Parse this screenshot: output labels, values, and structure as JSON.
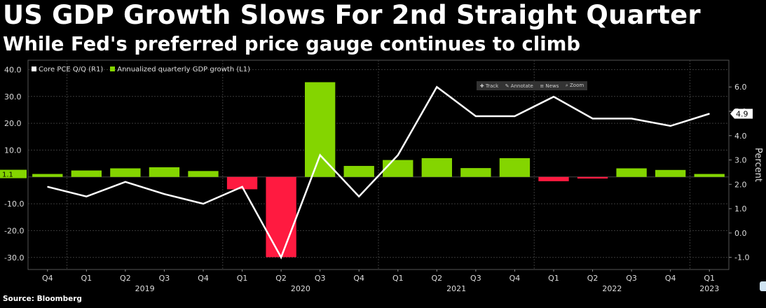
{
  "header": {
    "title": "US GDP Growth Slows For 2nd Straight Quarter",
    "subtitle": "While Fed's preferred price gauge continues to climb"
  },
  "footer": {
    "source": "Source: Bloomberg"
  },
  "toolbar": {
    "track": "Track",
    "annotate": "Annotate",
    "news": "News",
    "zoom": "Zoom"
  },
  "colors": {
    "positive": "#84d500",
    "negative": "#ff1a40",
    "line": "#ffffff",
    "grid": "#3a3a3a"
  },
  "chart_data": {
    "type": "bar",
    "categories": [
      "Q4",
      "Q1",
      "Q2",
      "Q3",
      "Q4",
      "Q1",
      "Q2",
      "Q3",
      "Q4",
      "Q1",
      "Q2",
      "Q3",
      "Q4",
      "Q1",
      "Q2",
      "Q3",
      "Q4",
      "Q1"
    ],
    "years": [
      {
        "label": "2019",
        "start": 1,
        "end": 4
      },
      {
        "label": "2020",
        "start": 5,
        "end": 8
      },
      {
        "label": "2021",
        "start": 9,
        "end": 12
      },
      {
        "label": "2022",
        "start": 13,
        "end": 16
      },
      {
        "label": "2023",
        "start": 17,
        "end": 17
      }
    ],
    "series": [
      {
        "name": "Annualized quarterly GDP growth (L1)",
        "type": "bar",
        "axis": "left",
        "values": [
          1.1,
          2.4,
          3.2,
          3.6,
          2.2,
          -4.6,
          -29.9,
          35.3,
          4.1,
          6.3,
          7.0,
          3.3,
          7.0,
          -1.6,
          -0.6,
          3.2,
          2.6,
          1.1
        ]
      },
      {
        "name": "Core PCE Q/Q (R1)",
        "type": "line",
        "axis": "right",
        "values": [
          1.9,
          1.5,
          2.1,
          1.6,
          1.2,
          1.9,
          -1.0,
          3.2,
          1.5,
          3.2,
          6.0,
          4.8,
          4.8,
          5.6,
          4.7,
          4.7,
          4.4,
          4.9
        ]
      }
    ],
    "left_axis": {
      "ylim": [
        -34.5,
        43.5
      ],
      "ticks": [
        40,
        30,
        20,
        10,
        -10,
        -20,
        -30
      ],
      "tick_labels": [
        "40.0",
        "30.0",
        "20.0",
        "10.0",
        "-10.0",
        "-20.0",
        "-30.0"
      ]
    },
    "right_axis": {
      "label": "Percent",
      "ylim": [
        -1.5,
        7.1
      ],
      "ticks": [
        6,
        5,
        4,
        3,
        2,
        1,
        0,
        -1
      ],
      "tick_labels": [
        "6.0",
        "5.0",
        "4.0",
        "3.0",
        "2.0",
        "1.0",
        "0.0",
        "-1.0"
      ]
    },
    "value_badges": {
      "left": "1.1",
      "right": "4.9"
    }
  }
}
